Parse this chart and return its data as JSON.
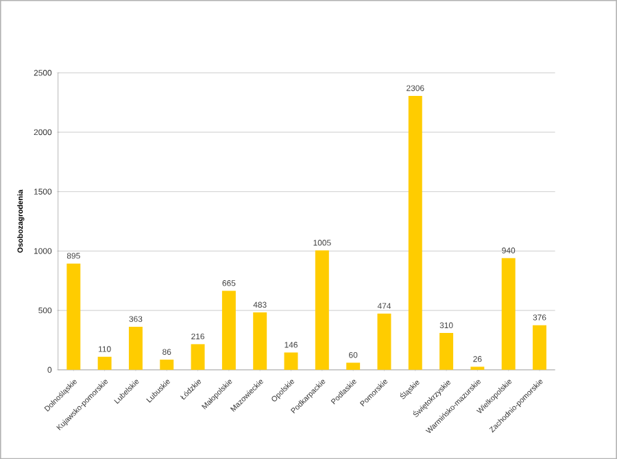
{
  "chart_data": {
    "type": "bar",
    "ylabel": "Osobozagrodenia",
    "categories": [
      "Dolnośląskie",
      "Kujawsko-pomorskie",
      "Lubelskie",
      "Lubuskie",
      "Łódzkie",
      "Małopolskie",
      "Mazowieckie",
      "Opolskie",
      "Podkarpackie",
      "Podlaskie",
      "Pomorskie",
      "Śląskie",
      "Świętokrzyskie",
      "Warmińsko-mazurskie",
      "Wielkopolskie",
      "Zachodnio-pomorskie"
    ],
    "values": [
      895,
      110,
      363,
      86,
      216,
      665,
      483,
      146,
      1005,
      60,
      474,
      2306,
      310,
      26,
      940,
      376
    ],
    "color": "#ffcc00",
    "ylim": [
      0,
      2500
    ],
    "yticks": [
      0,
      500,
      1000,
      1500,
      2000,
      2500
    ],
    "grid": "y",
    "data_labels": true
  }
}
